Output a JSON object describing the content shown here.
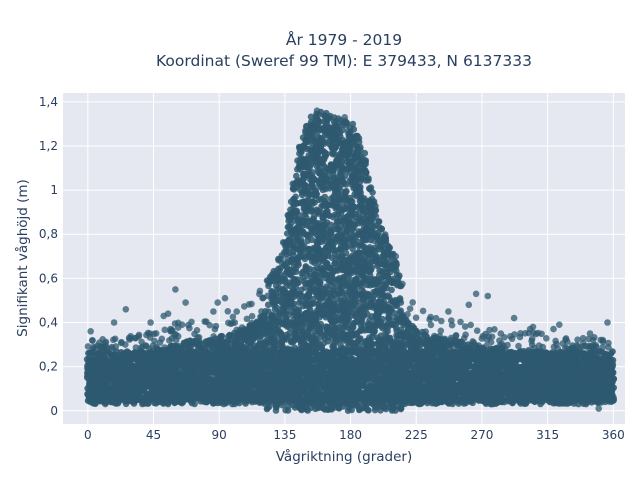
{
  "chart_data": {
    "type": "scatter",
    "title": [
      "År 1979 - 2019",
      "Koordinat (Sweref 99 TM): E 379433, N 6137333"
    ],
    "xlabel": "Vågriktning (grader)",
    "ylabel": "Signifikant våghöjd (m)",
    "xlim": [
      -17,
      368
    ],
    "ylim": [
      -0.06,
      1.44
    ],
    "xticks": [
      0,
      45,
      90,
      135,
      180,
      225,
      270,
      315,
      360
    ],
    "xtick_labels": [
      "0",
      "45",
      "90",
      "135",
      "180",
      "225",
      "270",
      "315",
      "360"
    ],
    "yticks": [
      0,
      0.2,
      0.4,
      0.6,
      0.8,
      1,
      1.2,
      1.4
    ],
    "ytick_labels": [
      "0",
      "0,2",
      "0,4",
      "0,6",
      "0,8",
      "1",
      "1,2",
      "1,4"
    ],
    "grid": true,
    "legend": "none",
    "marker_color": "#2e5970",
    "background_color": "#e5e8f0",
    "envelope": {
      "x": [
        0,
        20,
        45,
        60,
        80,
        95,
        110,
        120,
        128,
        135,
        140,
        145,
        150,
        155,
        160,
        165,
        170,
        175,
        180,
        185,
        190,
        195,
        200,
        205,
        210,
        215,
        220,
        230,
        240,
        255,
        270,
        290,
        315,
        340,
        360
      ],
      "y_max": [
        0.32,
        0.33,
        0.36,
        0.4,
        0.42,
        0.45,
        0.5,
        0.57,
        0.65,
        0.78,
        1.0,
        1.2,
        1.3,
        1.36,
        1.37,
        1.35,
        1.34,
        1.33,
        1.32,
        1.27,
        1.15,
        0.98,
        0.85,
        0.78,
        0.7,
        0.6,
        0.52,
        0.46,
        0.43,
        0.41,
        0.38,
        0.36,
        0.35,
        0.34,
        0.33
      ]
    },
    "band_y_range": [
      0.05,
      0.28
    ],
    "outliers": [
      {
        "x": 2,
        "y": 0.36
      },
      {
        "x": 18,
        "y": 0.4
      },
      {
        "x": 26,
        "y": 0.46
      },
      {
        "x": 43,
        "y": 0.4
      },
      {
        "x": 52,
        "y": 0.43
      },
      {
        "x": 55,
        "y": 0.44
      },
      {
        "x": 60,
        "y": 0.55
      },
      {
        "x": 67,
        "y": 0.49
      },
      {
        "x": 86,
        "y": 0.45
      },
      {
        "x": 89,
        "y": 0.49
      },
      {
        "x": 94,
        "y": 0.51
      },
      {
        "x": 143,
        "y": 0.94
      },
      {
        "x": 150,
        "y": 1.29
      },
      {
        "x": 157,
        "y": 1.36
      },
      {
        "x": 176,
        "y": 1.33
      },
      {
        "x": 211,
        "y": 0.7
      },
      {
        "x": 247,
        "y": 0.45
      },
      {
        "x": 261,
        "y": 0.48
      },
      {
        "x": 266,
        "y": 0.53
      },
      {
        "x": 274,
        "y": 0.52
      },
      {
        "x": 292,
        "y": 0.42
      },
      {
        "x": 303,
        "y": 0.37
      },
      {
        "x": 305,
        "y": 0.38
      },
      {
        "x": 319,
        "y": 0.37
      },
      {
        "x": 323,
        "y": 0.39
      },
      {
        "x": 344,
        "y": 0.35
      },
      {
        "x": 356,
        "y": 0.4
      },
      {
        "x": 350,
        "y": 0.01
      },
      {
        "x": 12,
        "y": 0.03
      }
    ]
  }
}
